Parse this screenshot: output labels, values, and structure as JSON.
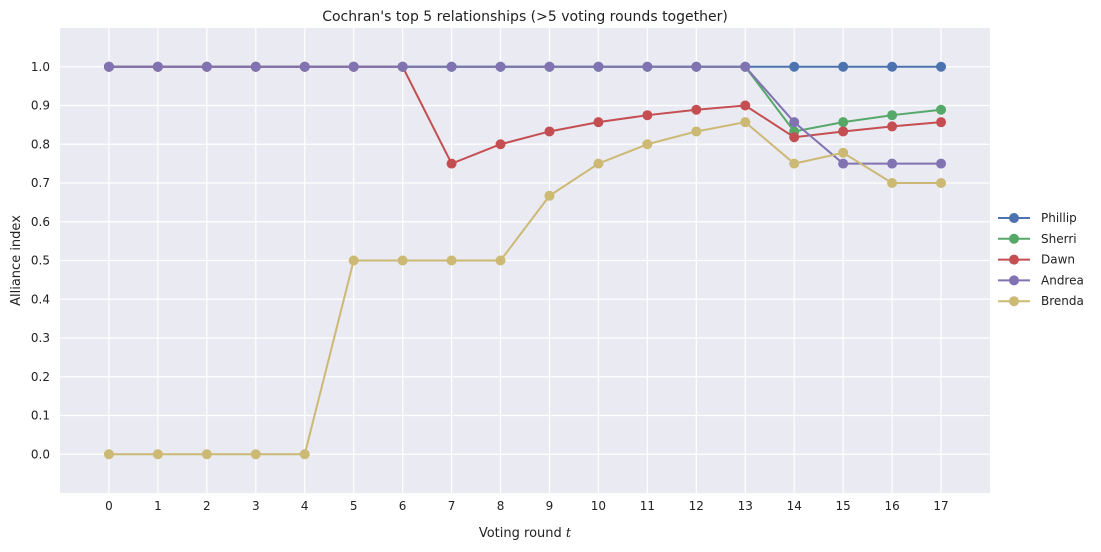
{
  "chart_data": {
    "type": "line",
    "title": "Cochran's top 5 relationships (>5 voting rounds together)",
    "xlabel": "Voting round",
    "xlabel_var": "t",
    "ylabel": "Alliance index",
    "x": [
      0,
      1,
      2,
      3,
      4,
      5,
      6,
      7,
      8,
      9,
      10,
      11,
      12,
      13,
      14,
      15,
      16,
      17
    ],
    "xlim": [
      -1,
      18
    ],
    "ylim": [
      -0.1,
      1.1
    ],
    "yticks": [
      "0.0",
      "0.1",
      "0.2",
      "0.3",
      "0.4",
      "0.5",
      "0.6",
      "0.7",
      "0.8",
      "0.9",
      "1.0"
    ],
    "ytick_values": [
      0,
      0.1,
      0.2,
      0.3,
      0.4,
      0.5,
      0.6,
      0.7,
      0.8,
      0.9,
      1.0
    ],
    "grid": true,
    "legend_position": "right",
    "series": [
      {
        "name": "Phillip",
        "color": "#4c72b0",
        "values": [
          1,
          1,
          1,
          1,
          1,
          1,
          1,
          1,
          1,
          1,
          1,
          1,
          1,
          1,
          1,
          1,
          1,
          1
        ]
      },
      {
        "name": "Sherri",
        "color": "#55a868",
        "values": [
          1,
          1,
          1,
          1,
          1,
          1,
          1,
          1,
          1,
          1,
          1,
          1,
          1,
          1,
          0.833,
          0.857,
          0.875,
          0.889
        ]
      },
      {
        "name": "Dawn",
        "color": "#c44e52",
        "values": [
          1,
          1,
          1,
          1,
          1,
          1,
          1,
          0.75,
          0.8,
          0.833,
          0.857,
          0.875,
          0.889,
          0.9,
          0.818,
          0.833,
          0.846,
          0.857
        ]
      },
      {
        "name": "Andrea",
        "color": "#8172b2",
        "values": [
          1,
          1,
          1,
          1,
          1,
          1,
          1,
          1,
          1,
          1,
          1,
          1,
          1,
          1,
          0.857,
          0.75,
          0.75,
          0.75
        ]
      },
      {
        "name": "Brenda",
        "color": "#ccb974",
        "values": [
          0,
          0,
          0,
          0,
          0,
          0.5,
          0.5,
          0.5,
          0.5,
          0.667,
          0.75,
          0.8,
          0.833,
          0.857,
          0.75,
          0.778,
          0.7,
          0.7
        ]
      }
    ]
  }
}
